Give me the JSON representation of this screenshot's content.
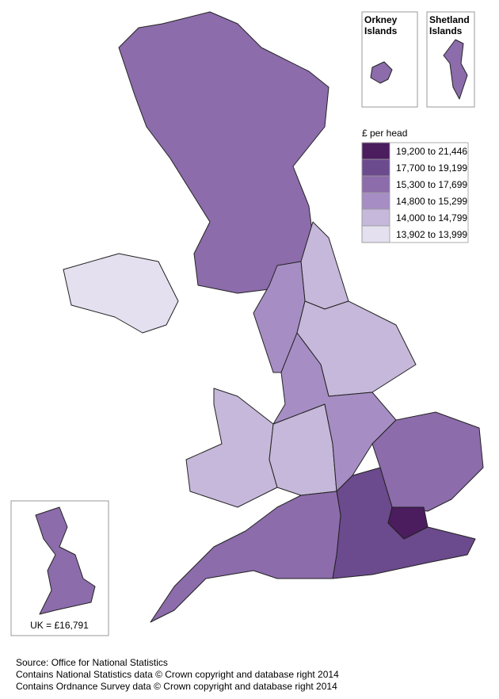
{
  "insets": [
    {
      "label": [
        "Orkney",
        "Islands"
      ]
    },
    {
      "label": [
        "Shetland",
        "Islands"
      ]
    }
  ],
  "legend": {
    "title": "£ per head",
    "entries": [
      {
        "label": "19,200 to 21,446",
        "color": "#4b1c5e"
      },
      {
        "label": "17,700 to 19,199",
        "color": "#6b4a8d"
      },
      {
        "label": "15,300 to 17,699",
        "color": "#8c6cab"
      },
      {
        "label": "14,800 to 15,299",
        "color": "#a68ec4"
      },
      {
        "label": "14,000 to 14,799",
        "color": "#c6b8da"
      },
      {
        "label": "13,902 to 13,999",
        "color": "#e5e0ef"
      }
    ]
  },
  "uk_inset": {
    "label": "UK = £16,791"
  },
  "footer": [
    "Source: Office for National Statistics",
    "Contains National Statistics data © Crown copyright and database right 2014",
    "Contains Ordnance Survey data © Crown copyright and database right 2014"
  ]
}
